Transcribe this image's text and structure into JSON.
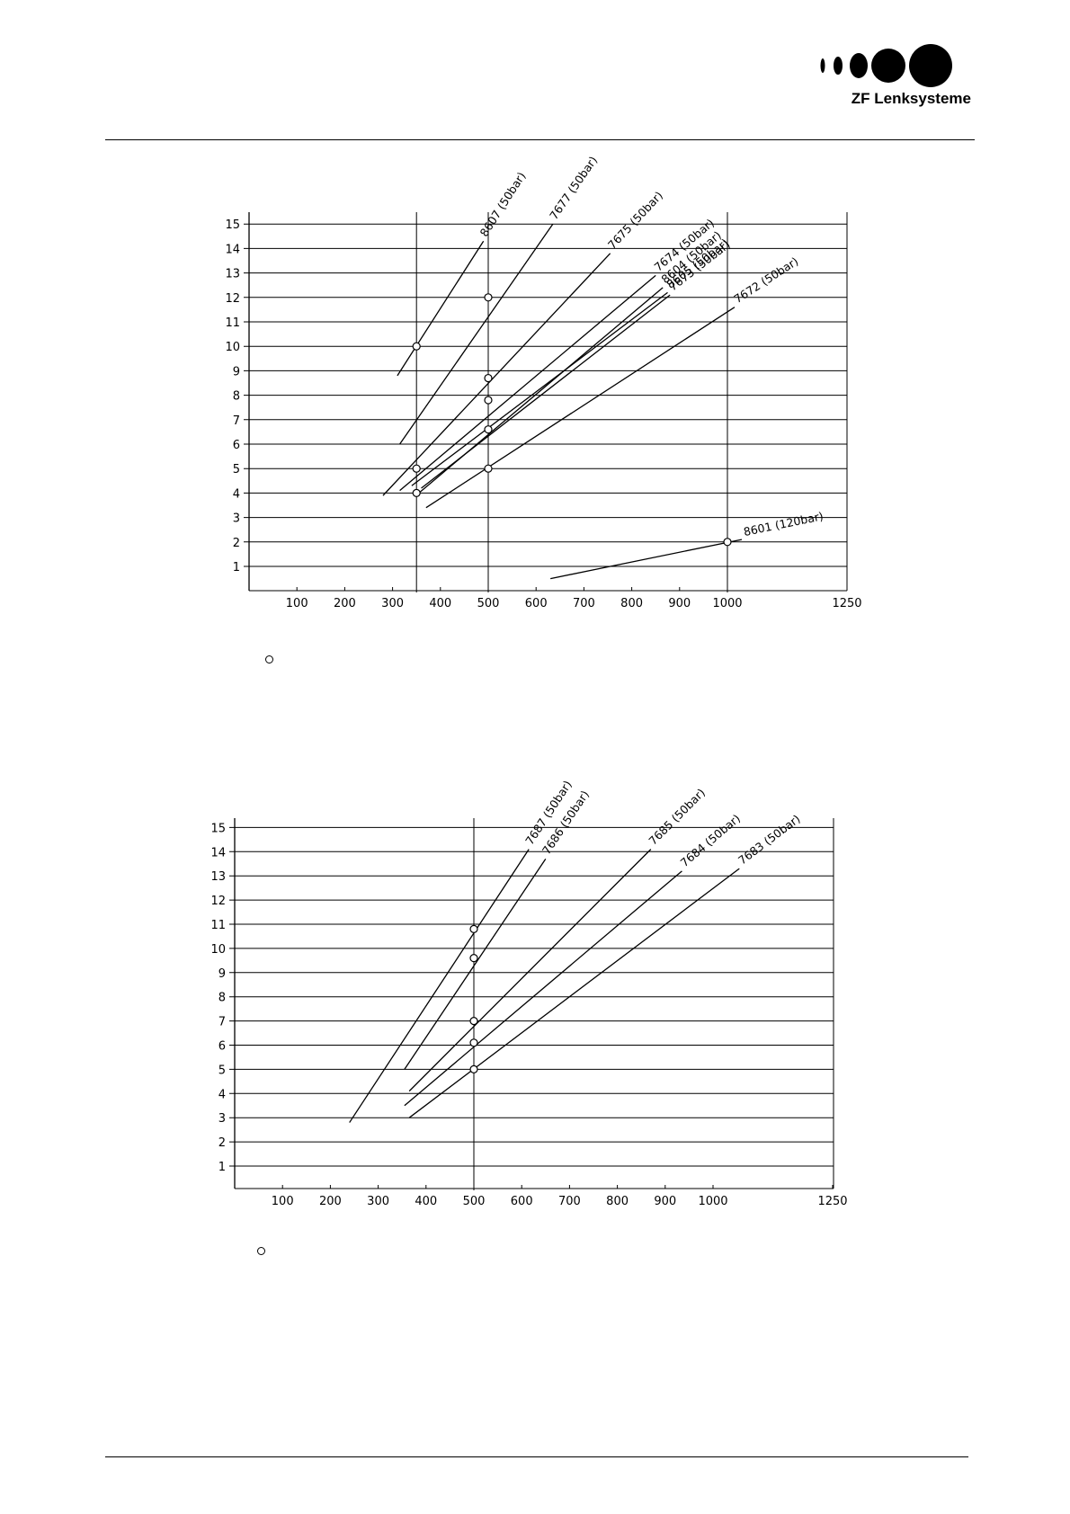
{
  "header": {
    "logo_text": "ZF Lenksysteme"
  },
  "chart_data": [
    {
      "type": "line",
      "x_ticks": [
        "100",
        "200",
        "300",
        "400",
        "500",
        "600",
        "700",
        "800",
        "900",
        "1000",
        "1250"
      ],
      "y_ticks": [
        "1",
        "2",
        "3",
        "4",
        "5",
        "6",
        "7",
        "8",
        "9",
        "10",
        "11",
        "12",
        "13",
        "14",
        "15"
      ],
      "xlim": [
        0,
        1250
      ],
      "ylim": [
        0,
        15.5
      ],
      "vertical_lines": [
        350,
        500,
        1000
      ],
      "series": [
        {
          "name": "8607 (50bar)",
          "x": [
            310,
            490
          ],
          "y": [
            8.8,
            14.3
          ],
          "markers": [
            {
              "x": 350,
              "y": 10
            }
          ]
        },
        {
          "name": "7677 (50bar)",
          "x": [
            315,
            635
          ],
          "y": [
            6.0,
            15.0
          ],
          "markers": [
            {
              "x": 500,
              "y": 12
            }
          ]
        },
        {
          "name": "7675 (50bar)",
          "x": [
            280,
            755
          ],
          "y": [
            3.9,
            13.8
          ],
          "markers": [
            {
              "x": 350,
              "y": 5
            },
            {
              "x": 500,
              "y": 8.7
            }
          ]
        },
        {
          "name": "7674 (50bar)",
          "x": [
            315,
            850
          ],
          "y": [
            4.1,
            12.9
          ],
          "markers": [
            {
              "x": 500,
              "y": 7.8
            }
          ]
        },
        {
          "name": "8604 (50bar)",
          "x": [
            355,
            865
          ],
          "y": [
            4.0,
            12.4
          ],
          "markers": [
            {
              "x": 350,
              "y": 4
            }
          ]
        },
        {
          "name": "8605 (50bar)",
          "x": [
            340,
            875
          ],
          "y": [
            4.3,
            12.2
          ],
          "markers": []
        },
        {
          "name": "7673 (50bar)",
          "x": [
            360,
            880
          ],
          "y": [
            4.2,
            12.1
          ],
          "markers": [
            {
              "x": 500,
              "y": 6.6
            }
          ]
        },
        {
          "name": "7672 (50bar)",
          "x": [
            370,
            1015
          ],
          "y": [
            3.4,
            11.6
          ],
          "markers": [
            {
              "x": 500,
              "y": 5
            }
          ]
        },
        {
          "name": "8601 (120bar)",
          "x": [
            630,
            1030
          ],
          "y": [
            0.5,
            2.1
          ],
          "markers": [
            {
              "x": 1000,
              "y": 2
            }
          ]
        }
      ]
    },
    {
      "type": "line",
      "x_ticks": [
        "100",
        "200",
        "300",
        "400",
        "500",
        "600",
        "700",
        "800",
        "900",
        "1000",
        "1250"
      ],
      "y_ticks": [
        "1",
        "2",
        "3",
        "4",
        "5",
        "6",
        "7",
        "8",
        "9",
        "10",
        "11",
        "12",
        "13",
        "14",
        "15"
      ],
      "xlim": [
        0,
        1250
      ],
      "ylim": [
        0,
        15.5
      ],
      "vertical_lines": [
        500
      ],
      "series": [
        {
          "name": "7687 (50bar)",
          "x": [
            240,
            615
          ],
          "y": [
            2.8,
            14.1
          ],
          "markers": [
            {
              "x": 500,
              "y": 10.8
            }
          ]
        },
        {
          "name": "7686 (50bar)",
          "x": [
            355,
            650
          ],
          "y": [
            5.0,
            13.7
          ],
          "markers": [
            {
              "x": 500,
              "y": 9.6
            }
          ]
        },
        {
          "name": "7685 (50bar)",
          "x": [
            365,
            870
          ],
          "y": [
            4.1,
            14.1
          ],
          "markers": [
            {
              "x": 500,
              "y": 7.0
            }
          ]
        },
        {
          "name": "7684 (50bar)",
          "x": [
            355,
            935
          ],
          "y": [
            3.5,
            13.2
          ],
          "markers": [
            {
              "x": 500,
              "y": 6.1
            }
          ]
        },
        {
          "name": "7683 (50bar)",
          "x": [
            365,
            1055
          ],
          "y": [
            3.0,
            13.3
          ],
          "markers": [
            {
              "x": 500,
              "y": 5.0
            }
          ]
        }
      ]
    }
  ]
}
